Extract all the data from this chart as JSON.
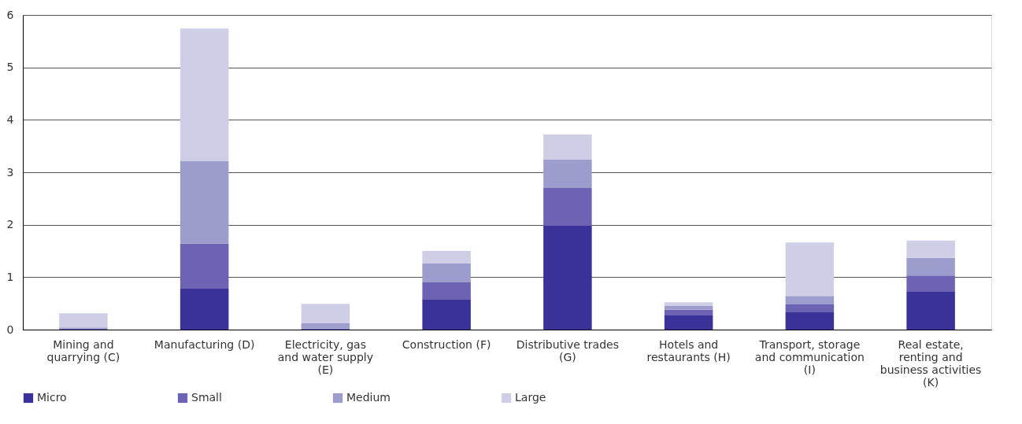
{
  "chart_data": {
    "type": "bar",
    "stacked": true,
    "categories": [
      "Mining and quarrying (C)",
      "Manufacturing (D)",
      "Electricity, gas and water supply (E)",
      "Construction (F)",
      "Distributive trades (G)",
      "Hotels and restaurants (H)",
      "Transport, storage and communication (I)",
      "Real estate, renting and business activities (K)"
    ],
    "series": [
      {
        "name": "Micro",
        "color": "#3a3199",
        "values": [
          0.01,
          0.78,
          0.01,
          0.58,
          1.98,
          0.28,
          0.33,
          0.73
        ]
      },
      {
        "name": "Small",
        "color": "#6c63b5",
        "values": [
          0.01,
          0.86,
          0.01,
          0.32,
          0.72,
          0.1,
          0.15,
          0.3
        ]
      },
      {
        "name": "Medium",
        "color": "#9d9dcd",
        "values": [
          0.02,
          1.57,
          0.1,
          0.36,
          0.54,
          0.07,
          0.16,
          0.34
        ]
      },
      {
        "name": "Large",
        "color": "#cecfe6",
        "values": [
          0.27,
          2.53,
          0.37,
          0.24,
          0.48,
          0.07,
          1.02,
          0.33
        ]
      }
    ],
    "ylim": [
      0,
      6
    ],
    "yticks": [
      0,
      1,
      2,
      3,
      4,
      5,
      6
    ],
    "grid": "y",
    "legend": "bottom"
  }
}
